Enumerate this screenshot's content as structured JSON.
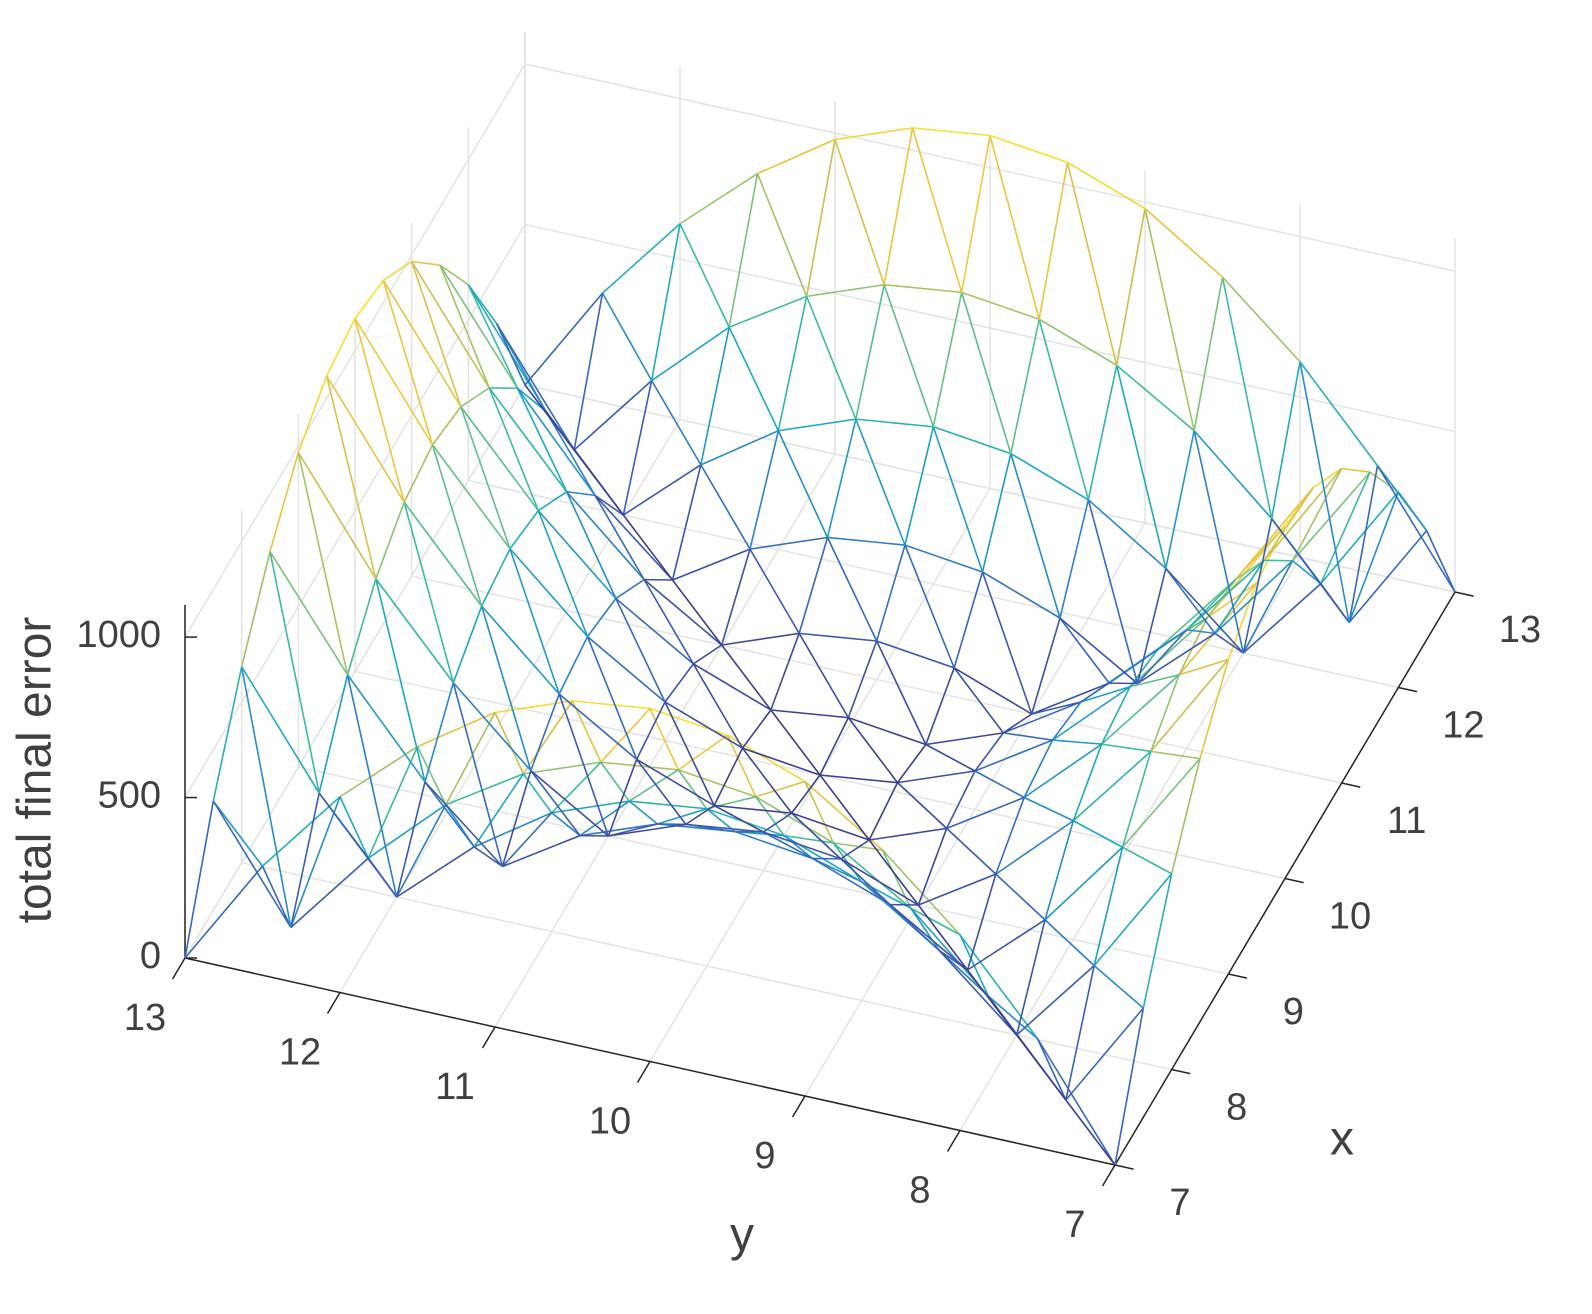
{
  "chart_data": {
    "type": "surface",
    "xlabel": "x",
    "ylabel": "y",
    "zlabel": "total final error",
    "x": [
      7,
      7.5,
      8,
      8.5,
      9,
      9.5,
      10,
      10.5,
      11,
      11.5,
      12,
      12.5,
      13
    ],
    "y": [
      7,
      7.5,
      8,
      8.5,
      9,
      9.5,
      10,
      10.5,
      11,
      11.5,
      12,
      12.5,
      13
    ],
    "z": [
      [
        0,
        340,
        610,
        820,
        980,
        1070,
        1100,
        1070,
        980,
        820,
        610,
        340,
        0
      ],
      [
        340,
        0,
        270,
        490,
        640,
        730,
        760,
        730,
        640,
        490,
        270,
        0,
        340
      ],
      [
        610,
        270,
        0,
        210,
        370,
        460,
        490,
        460,
        370,
        210,
        0,
        270,
        610
      ],
      [
        820,
        490,
        210,
        0,
        150,
        240,
        270,
        240,
        150,
        0,
        210,
        490,
        820
      ],
      [
        980,
        640,
        370,
        150,
        0,
        90,
        120,
        90,
        0,
        150,
        370,
        640,
        980
      ],
      [
        1070,
        730,
        460,
        240,
        90,
        0,
        30,
        0,
        90,
        240,
        460,
        730,
        1070
      ],
      [
        1100,
        760,
        490,
        270,
        120,
        30,
        0,
        30,
        120,
        270,
        490,
        760,
        1100
      ],
      [
        1070,
        730,
        460,
        240,
        90,
        0,
        30,
        0,
        90,
        240,
        460,
        730,
        1070
      ],
      [
        980,
        640,
        370,
        150,
        0,
        90,
        120,
        90,
        0,
        150,
        370,
        640,
        980
      ],
      [
        820,
        490,
        210,
        0,
        150,
        240,
        270,
        240,
        150,
        0,
        210,
        490,
        820
      ],
      [
        610,
        270,
        0,
        210,
        370,
        460,
        490,
        460,
        370,
        210,
        0,
        270,
        610
      ],
      [
        340,
        0,
        270,
        490,
        640,
        730,
        760,
        730,
        640,
        490,
        270,
        0,
        340
      ],
      [
        0,
        340,
        610,
        820,
        980,
        1070,
        1100,
        1070,
        980,
        820,
        610,
        340,
        0
      ]
    ],
    "xlim": [
      7,
      13
    ],
    "ylim": [
      7,
      13
    ],
    "zlim": [
      0,
      1100
    ],
    "xticks": [
      7,
      8,
      9,
      10,
      11,
      12,
      13
    ],
    "yticks": [
      7,
      8,
      9,
      10,
      11,
      12,
      13
    ],
    "zticks": [
      0,
      500,
      1000
    ],
    "grid": true,
    "colormap": [
      "#3e3d8f",
      "#3a5fb8",
      "#2b86c9",
      "#1aa7c4",
      "#3bbba0",
      "#8fc36f",
      "#d4bd4c",
      "#f7cb38",
      "#f3e52a"
    ]
  }
}
